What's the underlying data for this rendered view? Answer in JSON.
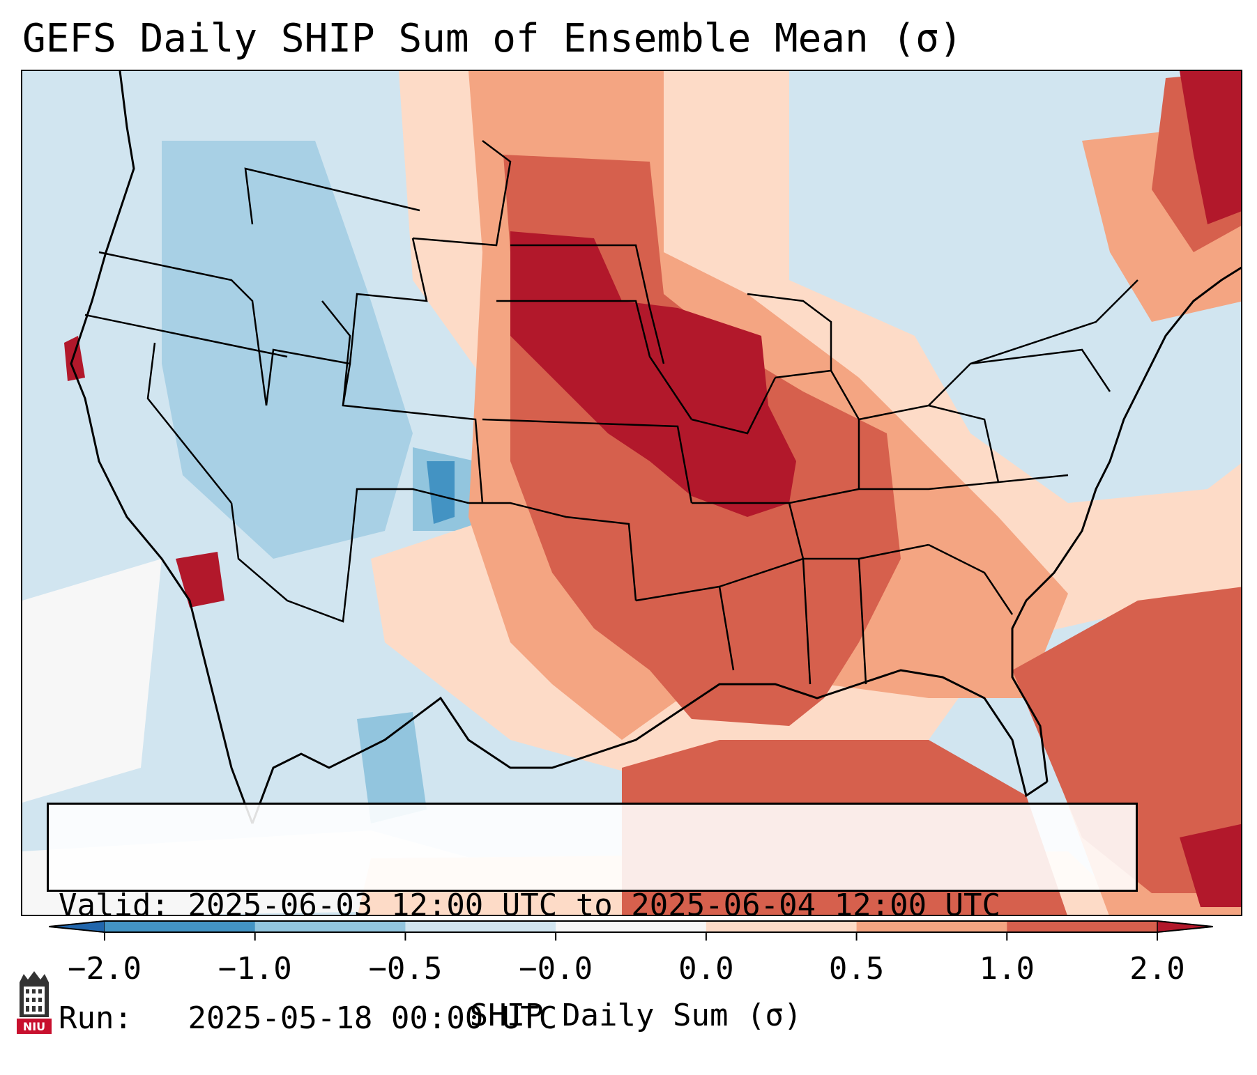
{
  "title": "GEFS Daily SHIP Sum of Ensemble Mean (σ)",
  "info": {
    "valid_label": "Valid:",
    "valid_value": "2025-06-03 12:00 UTC to 2025-06-04 12:00 UTC",
    "run_label": "Run:",
    "run_value": "2025-05-18 00:00 UTC"
  },
  "colorbar": {
    "title": "SHIP Daily Sum (σ)",
    "tick_labels": [
      "−2.0",
      "−1.0",
      "−0.5",
      "−0.0",
      "0.0",
      "0.5",
      "1.0",
      "2.0"
    ],
    "colors": [
      "#2166ac",
      "#4393c3",
      "#92c5de",
      "#d1e5f0",
      "#f7f7f7",
      "#fddbc7",
      "#f4a582",
      "#d6604d",
      "#b2182b"
    ]
  },
  "map": {
    "region": "Contiguous United States",
    "background_color": "#d1e5f0"
  },
  "logo": {
    "text": "NIU",
    "color": "#c8102e"
  }
}
